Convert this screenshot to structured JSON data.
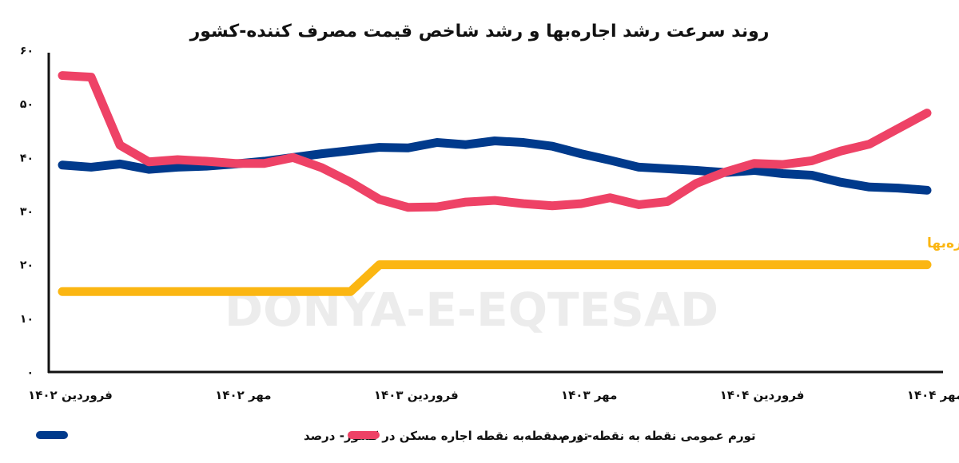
{
  "chart_data": {
    "type": "line",
    "title": "روند سرعت رشد اجاره‌بها و رشد شاخص قیمت مصرف کننده-کشور",
    "watermark": "DONYA-E-EQTESAD",
    "ylim": [
      0,
      60
    ],
    "yticks": [
      "۰",
      "۱۰",
      "۲۰",
      "۳۰",
      "۴۰",
      "۵۰",
      "۶۰"
    ],
    "xtick_labels": [
      "فروردین ۱۴۰۲",
      "مهر ۱۴۰۲",
      "فروردین ۱۴۰۳",
      "مهر ۱۴۰۳",
      "فروردین ۱۴۰۴",
      "مهر ۱۴۰۴"
    ],
    "grid": false,
    "legend_position": "bottom",
    "series": [
      {
        "name": "تورم نقطه‌به نقطه اجاره مسکن در کشور- درصد",
        "color": "#003a8c",
        "values": [
          38.6,
          38.2,
          38.8,
          37.8,
          38.2,
          38.4,
          38.8,
          39.3,
          40.0,
          40.7,
          41.3,
          41.9,
          41.8,
          42.8,
          42.4,
          43.1,
          42.8,
          42.1,
          40.7,
          39.5,
          38.2,
          37.9,
          37.6,
          37.2,
          37.6,
          37.0,
          36.7,
          35.4,
          34.5,
          34.3,
          33.9
        ]
      },
      {
        "name": "تورم عمومی نقطه به نقطه- درصد",
        "color": "#ee4266",
        "values": [
          55.3,
          55.0,
          42.3,
          39.2,
          39.6,
          39.3,
          38.9,
          38.9,
          40.0,
          38.1,
          35.4,
          32.2,
          30.7,
          30.8,
          31.7,
          32.0,
          31.4,
          31.0,
          31.4,
          32.5,
          31.2,
          31.8,
          35.2,
          37.3,
          38.9,
          38.7,
          39.4,
          41.2,
          42.5,
          45.4,
          48.3
        ]
      },
      {
        "name": "نرخ دولتی (مجاز) رشد اجاره‌بها",
        "color": "#fbb612",
        "values": [
          15,
          15,
          15,
          15,
          15,
          15,
          15,
          15,
          15,
          15,
          15,
          20,
          20,
          20,
          20,
          20,
          20,
          20,
          20,
          20,
          20,
          20,
          20,
          20,
          20,
          20,
          20,
          20,
          20,
          20,
          20
        ]
      }
    ]
  }
}
